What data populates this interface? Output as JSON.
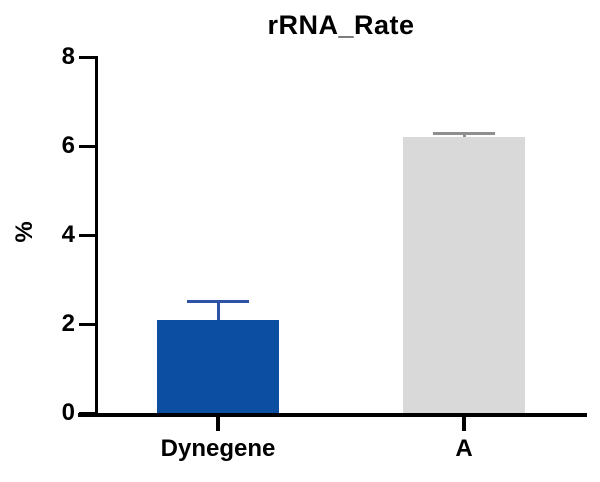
{
  "chart_data": {
    "type": "bar",
    "title": "rRNA_Rate",
    "ylabel": "%",
    "xlabel": "",
    "categories": [
      "Dynegene",
      "A"
    ],
    "values": [
      2.1,
      6.2
    ],
    "errors_plus": [
      0.4,
      0.08
    ],
    "ylim": [
      0,
      8
    ],
    "yticks": [
      0,
      2,
      4,
      6,
      8
    ],
    "grid": false,
    "legend_position": "none",
    "bar_colors": [
      "#0B4EA2",
      "#D9D9D9"
    ],
    "error_colors": [
      "#2E53A6",
      "#8F8F8F"
    ],
    "axis_color": "#000000",
    "background_color": "#FFFFFF"
  }
}
